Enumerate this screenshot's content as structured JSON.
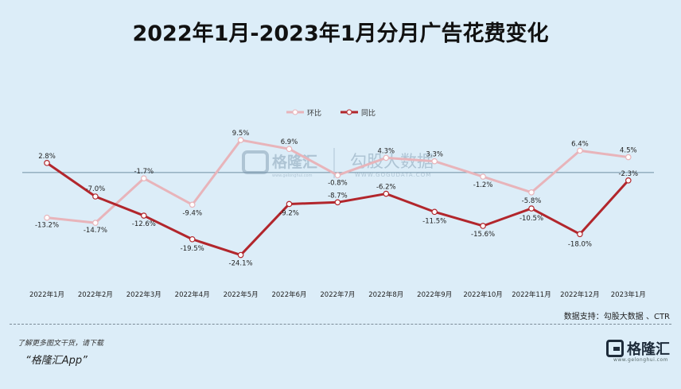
{
  "title": "2022年1月-2023年1月分月广告花费变化",
  "source": "数据支持：勾股大数据 、CTR",
  "footer": {
    "promo": "了解更多图文干货，请下载",
    "app": "“格隆汇App”",
    "brand": "格隆汇",
    "brand_url": "www.gelonghui.com"
  },
  "watermark": {
    "brand": "格隆汇",
    "brand_url": "www.gelonghui.com",
    "name": "勾股大数据",
    "url": "WWW.GOGUDATA.COM"
  },
  "chart_data": {
    "type": "line",
    "categories": [
      "2022年1月",
      "2022年2月",
      "2022年3月",
      "2022年4月",
      "2022年5月",
      "2022年6月",
      "2022年7月",
      "2022年8月",
      "2022年9月",
      "2022年10月",
      "2022年11月",
      "2022年12月",
      "2023年1月"
    ],
    "series": [
      {
        "name": "环比",
        "color": "#e8b4ba",
        "values": [
          -13.2,
          -14.7,
          -1.7,
          -9.4,
          9.5,
          6.9,
          -0.8,
          4.3,
          3.3,
          -1.2,
          -5.8,
          6.4,
          4.5
        ],
        "labels": [
          "-13.2%",
          "-14.7%",
          "-1.7%",
          "-9.4%",
          "9.5%",
          "6.9%",
          "-0.8%",
          "4.3%",
          "3.3%",
          "-1.2%",
          "-5.8%",
          "6.4%",
          "4.5%"
        ]
      },
      {
        "name": "同比",
        "color": "#b2262c",
        "values": [
          2.8,
          -7.0,
          -12.6,
          -19.5,
          -24.1,
          -9.2,
          -8.7,
          -6.2,
          -11.5,
          -15.6,
          -10.5,
          -18.0,
          -2.3
        ],
        "labels": [
          "2.8%",
          "-7.0%",
          "-12.6%",
          "-19.5%",
          "-24.1%",
          "-9.2%",
          "-8.7%",
          "-6.2%",
          "-11.5%",
          "-15.6%",
          "-10.5%",
          "-18.0%",
          "-2.3%"
        ]
      }
    ],
    "ylim": [
      -27,
      13
    ],
    "zero_line": true,
    "grid": false,
    "legend_position": "top"
  }
}
